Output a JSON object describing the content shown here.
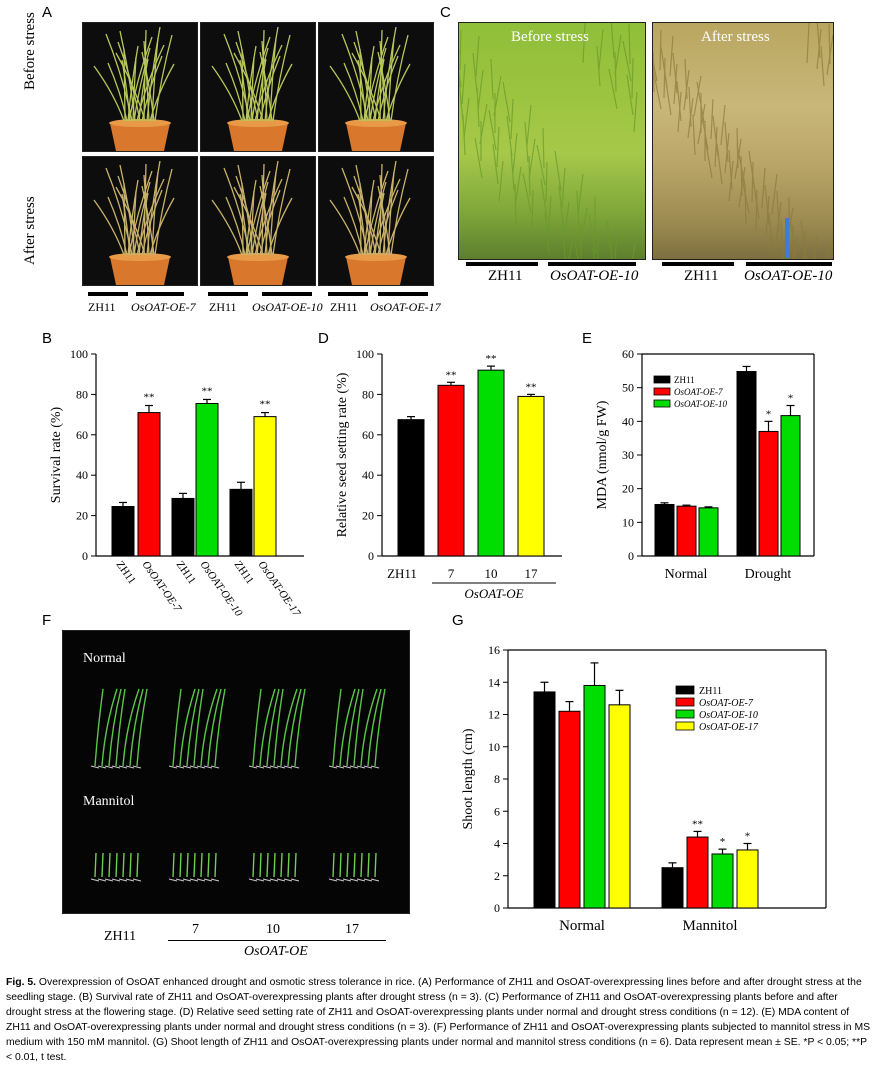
{
  "panels": {
    "A": {
      "letter": "A",
      "row_labels": [
        "Before stress",
        "After stress"
      ],
      "genotypes": [
        [
          "ZH11",
          "OsOAT-OE-7"
        ],
        [
          "ZH11",
          "OsOAT-OE-10"
        ],
        [
          "ZH11",
          "OsOAT-OE-17"
        ]
      ]
    },
    "C": {
      "letter": "C",
      "overlay_before": "Before stress",
      "overlay_after": "After stress",
      "genotypes_before": [
        "ZH11",
        "OsOAT-OE-10"
      ],
      "genotypes_after": [
        "ZH11",
        "OsOAT-OE-10"
      ]
    },
    "F": {
      "letter": "F",
      "row_labels": [
        "Normal",
        "Mannitol"
      ],
      "x_labels": [
        "ZH11",
        "7",
        "10",
        "17"
      ],
      "group_label": "OsOAT-OE"
    }
  },
  "chart_data": [
    {
      "panel": "B",
      "type": "bar",
      "ylabel": "Survival rate (%)",
      "ylim": [
        0,
        100
      ],
      "yticks": [
        0,
        20,
        40,
        60,
        80,
        100
      ],
      "categories": [
        "ZH11",
        "OsOAT-OE-7",
        "ZH11",
        "OsOAT-OE-10",
        "ZH11",
        "OsOAT-OE-17"
      ],
      "values": [
        24.5,
        71,
        28.5,
        75.5,
        33,
        69
      ],
      "errors": [
        2,
        3.5,
        2.5,
        2,
        3.5,
        2
      ],
      "significance": [
        "",
        "**",
        "",
        "**",
        "",
        "**"
      ],
      "colors": [
        "#000000",
        "#ff0000",
        "#000000",
        "#00dd00",
        "#000000",
        "#ffff00"
      ]
    },
    {
      "panel": "D",
      "type": "bar",
      "ylabel": "Relative seed setting rate (%)",
      "ylim": [
        0,
        100
      ],
      "yticks": [
        0,
        20,
        40,
        60,
        80,
        100
      ],
      "categories": [
        "ZH11",
        "7",
        "10",
        "17"
      ],
      "group_label": "OsOAT-OE",
      "values": [
        67.5,
        84.5,
        92,
        79
      ],
      "errors": [
        1.5,
        1.5,
        2,
        1
      ],
      "significance": [
        "",
        "**",
        "**",
        "**"
      ],
      "colors": [
        "#000000",
        "#ff0000",
        "#00dd00",
        "#ffff00"
      ]
    },
    {
      "panel": "E",
      "type": "bar",
      "ylabel": "MDA (nmol/g FW)",
      "ylim": [
        0,
        60
      ],
      "yticks": [
        0,
        10,
        20,
        30,
        40,
        50,
        60
      ],
      "categories": [
        "Normal",
        "Drought"
      ],
      "series": [
        {
          "name": "ZH11",
          "values": [
            15.3,
            54.8
          ],
          "errors": [
            0.5,
            1.5
          ],
          "color": "#000000",
          "significance": [
            "",
            ""
          ]
        },
        {
          "name": "OsOAT-OE-7",
          "values": [
            14.8,
            37
          ],
          "errors": [
            0.3,
            3
          ],
          "color": "#ff0000",
          "significance": [
            "",
            "*"
          ]
        },
        {
          "name": "OsOAT-OE-10",
          "values": [
            14.3,
            41.7
          ],
          "errors": [
            0.3,
            3
          ],
          "color": "#00dd00",
          "significance": [
            "",
            "*"
          ]
        }
      ],
      "legend": "top-left"
    },
    {
      "panel": "G",
      "type": "bar",
      "ylabel": "Shoot length (cm)",
      "ylim": [
        0,
        16
      ],
      "yticks": [
        0,
        2,
        4,
        6,
        8,
        10,
        12,
        14,
        16
      ],
      "categories": [
        "Normal",
        "Mannitol"
      ],
      "series": [
        {
          "name": "ZH11",
          "values": [
            13.4,
            2.5
          ],
          "errors": [
            0.6,
            0.3
          ],
          "color": "#000000",
          "significance": [
            "",
            ""
          ]
        },
        {
          "name": "OsOAT-OE-7",
          "values": [
            12.2,
            4.4
          ],
          "errors": [
            0.6,
            0.35
          ],
          "color": "#ff0000",
          "significance": [
            "",
            "**"
          ]
        },
        {
          "name": "OsOAT-OE-10",
          "values": [
            13.8,
            3.35
          ],
          "errors": [
            1.4,
            0.3
          ],
          "color": "#00dd00",
          "significance": [
            "",
            "*"
          ]
        },
        {
          "name": "OsOAT-OE-17",
          "values": [
            12.6,
            3.6
          ],
          "errors": [
            0.9,
            0.4
          ],
          "color": "#ffff00",
          "significance": [
            "",
            "*"
          ]
        }
      ],
      "legend": "top-right"
    }
  ],
  "caption": {
    "fig": "Fig. 5.",
    "text": "Overexpression of OsOAT enhanced drought and osmotic stress tolerance in rice. (A) Performance of ZH11 and OsOAT-overexpressing lines before and after drought stress at the seedling stage. (B) Survival rate of ZH11 and OsOAT-overexpressing plants after drought stress (n = 3). (C) Performance of ZH11 and OsOAT-overexpressing plants before and after drought stress at the flowering stage. (D) Relative seed setting rate of ZH11 and OsOAT-overexpressing plants under normal and drought stress conditions (n = 12). (E) MDA content of ZH11 and OsOAT-overexpressing plants under normal and drought stress conditions (n = 3). (F) Performance of ZH11 and OsOAT-overexpressing plants subjected to mannitol stress in MS medium with 150 mM mannitol. (G) Shoot length of ZH11 and OsOAT-overexpressing plants under normal and mannitol stress conditions (n = 6). Data represent mean ± SE. *P < 0.05; **P < 0.01, t test."
  }
}
